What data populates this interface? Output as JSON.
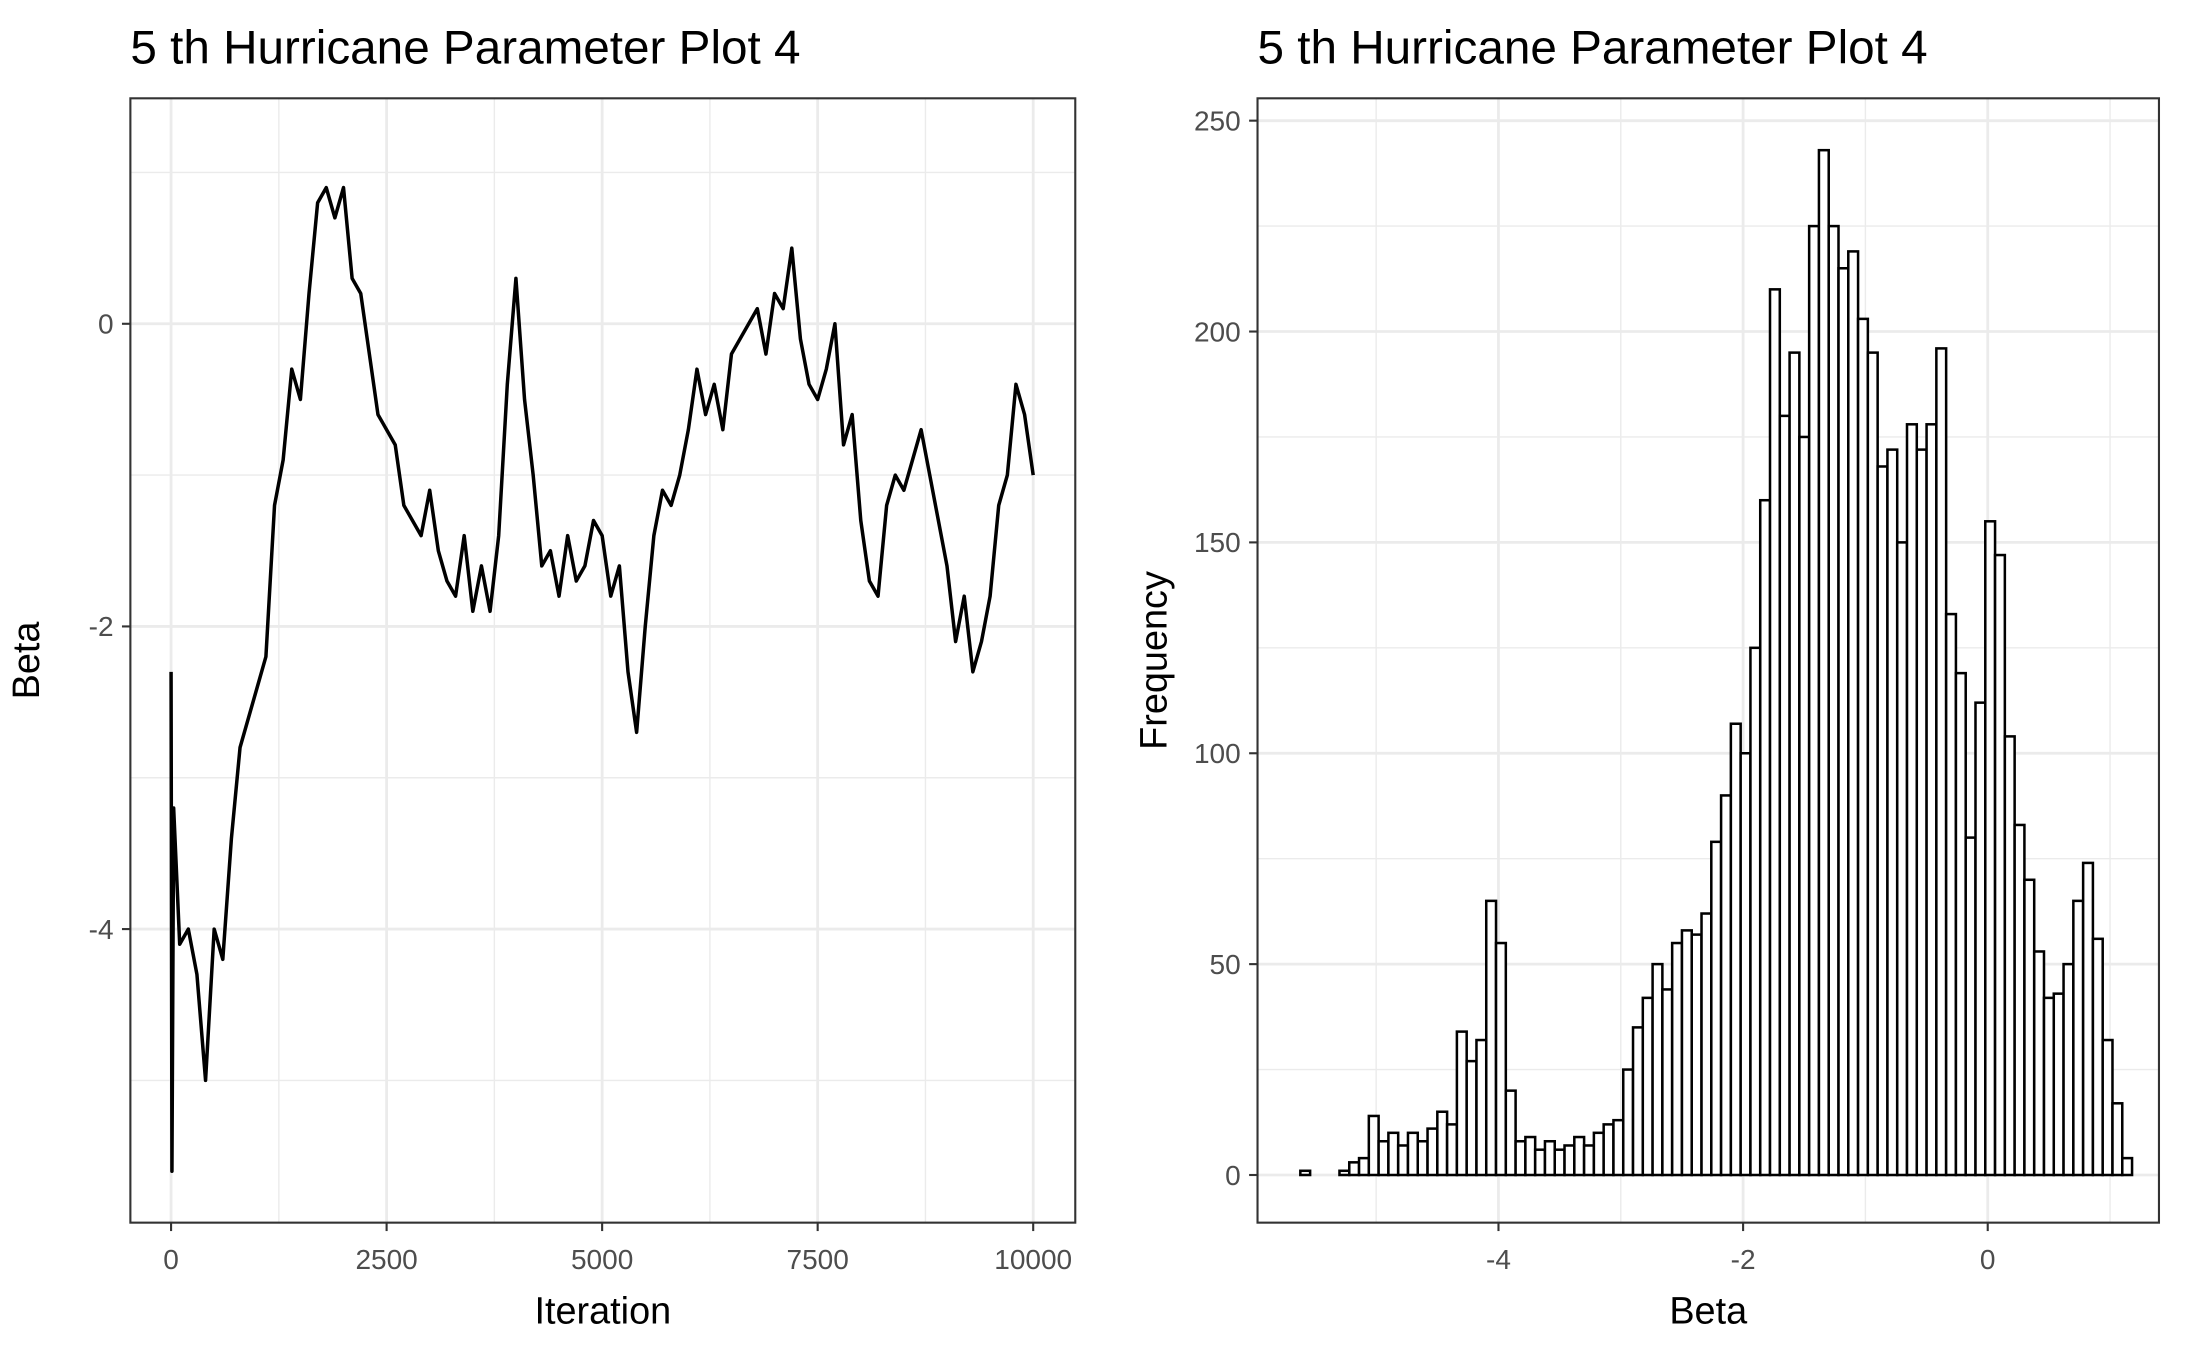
{
  "chart_data": [
    {
      "type": "line",
      "title": "5 th Hurricane Parameter Plot 4",
      "xlabel": "Iteration",
      "ylabel": "Beta",
      "x": [
        0,
        10,
        30,
        100,
        200,
        300,
        400,
        500,
        600,
        700,
        800,
        900,
        1000,
        1100,
        1200,
        1300,
        1400,
        1500,
        1600,
        1700,
        1800,
        1900,
        2000,
        2100,
        2200,
        2300,
        2400,
        2500,
        2600,
        2700,
        2800,
        2900,
        3000,
        3100,
        3200,
        3300,
        3400,
        3500,
        3600,
        3700,
        3800,
        3900,
        4000,
        4100,
        4200,
        4300,
        4400,
        4500,
        4600,
        4700,
        4800,
        4900,
        5000,
        5100,
        5200,
        5300,
        5400,
        5500,
        5600,
        5700,
        5800,
        5900,
        6000,
        6100,
        6200,
        6300,
        6400,
        6500,
        6600,
        6700,
        6800,
        6900,
        7000,
        7100,
        7200,
        7300,
        7400,
        7500,
        7600,
        7700,
        7800,
        7900,
        8000,
        8100,
        8200,
        8300,
        8400,
        8500,
        8600,
        8700,
        8800,
        8900,
        9000,
        9100,
        9200,
        9300,
        9400,
        9500,
        9600,
        9700,
        9800,
        9900,
        10000
      ],
      "values": [
        -2.3,
        -5.6,
        -3.2,
        -4.1,
        -4.0,
        -4.3,
        -5.0,
        -4.0,
        -4.2,
        -3.4,
        -2.8,
        -2.6,
        -2.4,
        -2.2,
        -1.2,
        -0.9,
        -0.3,
        -0.5,
        0.2,
        0.8,
        0.9,
        0.7,
        0.9,
        0.3,
        0.2,
        -0.2,
        -0.6,
        -0.7,
        -0.8,
        -1.2,
        -1.3,
        -1.4,
        -1.1,
        -1.5,
        -1.7,
        -1.8,
        -1.4,
        -1.9,
        -1.6,
        -1.9,
        -1.4,
        -0.4,
        0.3,
        -0.5,
        -1.0,
        -1.6,
        -1.5,
        -1.8,
        -1.4,
        -1.7,
        -1.6,
        -1.3,
        -1.4,
        -1.8,
        -1.6,
        -2.3,
        -2.7,
        -2.0,
        -1.4,
        -1.1,
        -1.2,
        -1.0,
        -0.7,
        -0.3,
        -0.6,
        -0.4,
        -0.7,
        -0.2,
        -0.1,
        0.0,
        0.1,
        -0.2,
        0.2,
        0.1,
        0.5,
        -0.1,
        -0.4,
        -0.5,
        -0.3,
        0.0,
        -0.8,
        -0.6,
        -1.3,
        -1.7,
        -1.8,
        -1.2,
        -1.0,
        -1.1,
        -0.9,
        -0.7,
        -1.0,
        -1.3,
        -1.6,
        -2.1,
        -1.8,
        -2.3,
        -2.1,
        -1.8,
        -1.2,
        -1.0,
        -0.4,
        -0.6,
        -1.0
      ],
      "color": "#000000",
      "xlim": [
        -472,
        10488
      ],
      "ylim": [
        -5.94,
        1.49
      ],
      "xticks": [
        0,
        2500,
        5000,
        7500,
        10000
      ],
      "yticks": [
        -4,
        -2,
        0
      ],
      "grid": true
    },
    {
      "type": "histogram",
      "title": "5 th Hurricane Parameter Plot 4",
      "xlabel": "Beta",
      "ylabel": "Frequency",
      "bins": [
        -5.62,
        -5.54,
        -5.46,
        -5.38,
        -5.3,
        -5.22,
        -5.14,
        -5.06,
        -4.98,
        -4.9,
        -4.82,
        -4.74,
        -4.66,
        -4.58,
        -4.5,
        -4.42,
        -4.34,
        -4.26,
        -4.18,
        -4.1,
        -4.02,
        -3.94,
        -3.86,
        -3.78,
        -3.7,
        -3.62,
        -3.54,
        -3.46,
        -3.38,
        -3.3,
        -3.22,
        -3.14,
        -3.06,
        -2.98,
        -2.9,
        -2.82,
        -2.74,
        -2.66,
        -2.58,
        -2.5,
        -2.42,
        -2.34,
        -2.26,
        -2.18,
        -2.1,
        -2.02,
        -1.94,
        -1.86,
        -1.78,
        -1.7,
        -1.62,
        -1.54,
        -1.46,
        -1.38,
        -1.3,
        -1.22,
        -1.14,
        -1.06,
        -0.98,
        -0.9,
        -0.82,
        -0.74,
        -0.66,
        -0.58,
        -0.5,
        -0.42,
        -0.34,
        -0.26,
        -0.18,
        -0.1,
        -0.02,
        0.06,
        0.14,
        0.22,
        0.3,
        0.38,
        0.46,
        0.54,
        0.62,
        0.7,
        0.78,
        0.86,
        0.94,
        1.02,
        1.1,
        1.18
      ],
      "values": [
        1,
        0,
        0,
        0,
        1,
        3,
        4,
        14,
        8,
        10,
        7,
        10,
        8,
        11,
        15,
        12,
        34,
        27,
        32,
        65,
        55,
        20,
        8,
        9,
        6,
        8,
        6,
        7,
        9,
        7,
        10,
        12,
        13,
        25,
        35,
        42,
        50,
        44,
        55,
        58,
        57,
        62,
        79,
        90,
        107,
        100,
        125,
        160,
        210,
        180,
        195,
        175,
        225,
        243,
        225,
        215,
        219,
        203,
        195,
        168,
        172,
        150,
        178,
        172,
        178,
        196,
        133,
        119,
        80,
        112,
        155,
        147,
        104,
        83,
        70,
        53,
        42,
        43,
        50,
        65,
        74,
        56,
        32,
        17,
        4
      ],
      "color": "#000000",
      "fill": "#ffffff",
      "xlim": [
        -5.97,
        1.4
      ],
      "ylim": [
        -11.3,
        255.3
      ],
      "xticks": [
        -4,
        -2,
        0
      ],
      "yticks": [
        0,
        50,
        100,
        150,
        200,
        250
      ],
      "grid": true
    }
  ]
}
